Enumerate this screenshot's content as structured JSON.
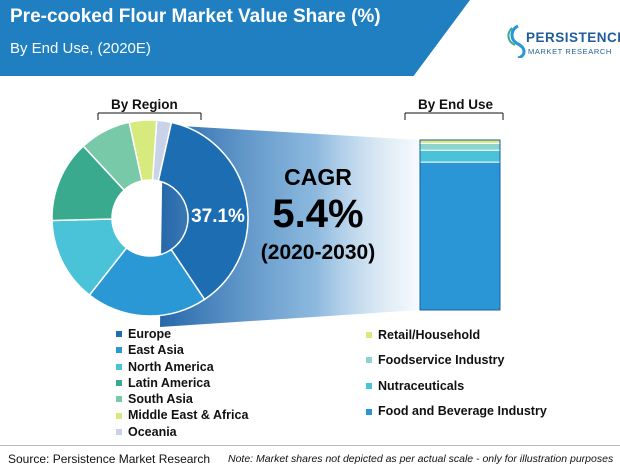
{
  "header": {
    "title": "Pre-cooked Flour Market Value Share (%)",
    "subtitle": "By End Use, (2020E)"
  },
  "logo": {
    "name": "PERSISTENCE",
    "tagline": "MARKET RESEARCH"
  },
  "chart_data": [
    {
      "type": "pie",
      "title": "By Region",
      "categories": [
        "Europe",
        "East Asia",
        "North America",
        "Latin America",
        "South Asia",
        "Middle East & Africa",
        "Oceania"
      ],
      "values": [
        37.1,
        20.0,
        14.0,
        13.5,
        8.5,
        4.5,
        2.4
      ],
      "colors": [
        "#1d6db3",
        "#2b98d6",
        "#4ac2d8",
        "#3aaa8f",
        "#78c9a8",
        "#d6ea7e",
        "#c9d3e8"
      ],
      "data_labels": [
        "37.1%",
        "",
        "",
        "",
        "",
        "",
        ""
      ],
      "legend_position": "bottom"
    },
    {
      "type": "bar",
      "stacked": true,
      "title": "By End Use",
      "categories": [
        "Food and Beverage Industry",
        "Nutraceuticals",
        "Foodservice Industry",
        "Retail/Household"
      ],
      "values": [
        87,
        7,
        4,
        2
      ],
      "colors": [
        "#2a96d6",
        "#4ac2d8",
        "#8fd3cf",
        "#d6ea7e"
      ],
      "legend_position": "bottom"
    }
  ],
  "cagr": {
    "label": "CAGR",
    "value": "5.4%",
    "period": "(2020-2030)"
  },
  "legend_region": [
    "Europe",
    "East Asia",
    "North America",
    "Latin America",
    "South Asia",
    "Middle East & Africa",
    "Oceania"
  ],
  "legend_enduse": [
    "Retail/Household",
    "Foodservice Industry",
    "Nutraceuticals",
    "Food and Beverage Industry"
  ],
  "footer": {
    "source": "Source: Persistence Market Research",
    "note": "Note: Market shares not depicted as per actual scale - only for illustration purposes"
  }
}
